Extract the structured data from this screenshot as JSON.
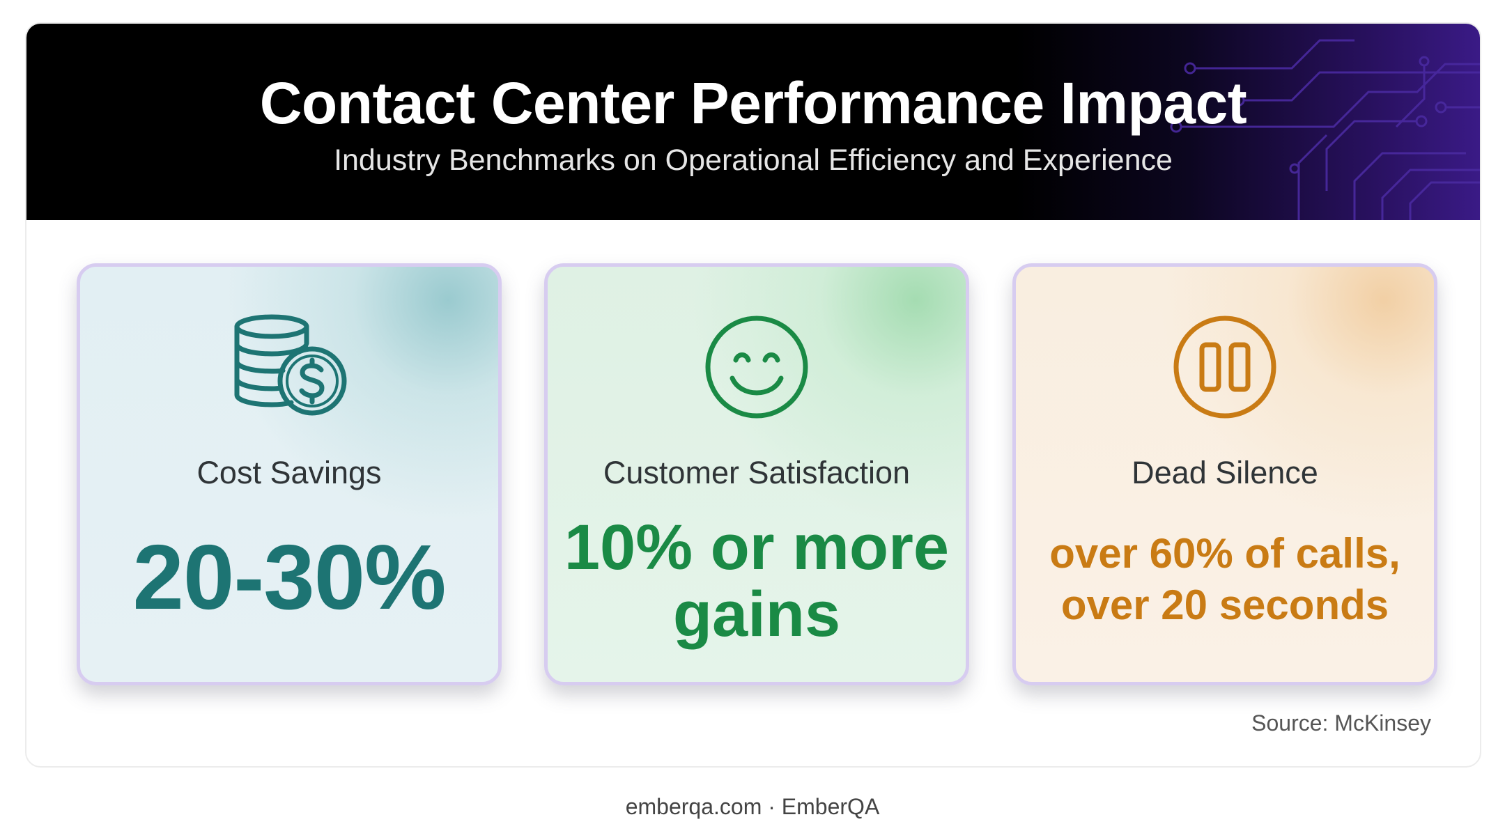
{
  "header": {
    "title": "Contact Center Performance Impact",
    "subtitle": "Industry Benchmarks on Operational Efficiency and Experience"
  },
  "cards": [
    {
      "label": "Cost Savings",
      "value": "20-30%",
      "icon": "coins-dollar-icon",
      "accent": "#1d7473"
    },
    {
      "label": "Customer Satisfaction",
      "value": "10% or more gains",
      "icon": "smiley-face-icon",
      "accent": "#1a8a45"
    },
    {
      "label": "Dead Silence",
      "value": "over 60% of calls, over 20 seconds",
      "icon": "pause-icon",
      "accent": "#c97b14"
    }
  ],
  "source": "Source: McKinsey",
  "footer": {
    "site": "emberqa.com",
    "separator": "·",
    "brand": "EmberQA"
  }
}
